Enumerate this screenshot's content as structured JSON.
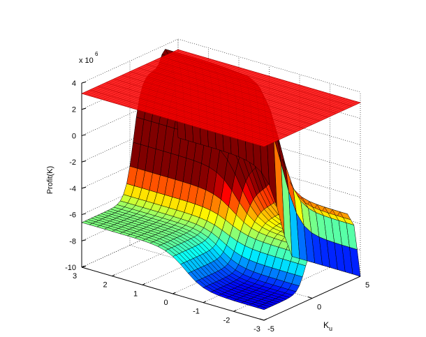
{
  "chart_data": {
    "type": "surface",
    "title": "",
    "zlabel": "Profit(K)",
    "xlabel": "",
    "ylabel": "K_u",
    "ylabel_main": "K",
    "ylabel_sub": "u",
    "z_exponent_label": "x 10",
    "z_exponent_power": "6",
    "xlim": [
      -3,
      3
    ],
    "ylim": [
      -5,
      5
    ],
    "zlim": [
      -10,
      4
    ],
    "x_ticks": [
      "3",
      "2",
      "1",
      "0",
      "-1",
      "-2",
      "-3"
    ],
    "x_tick_values": [
      3,
      2,
      1,
      0,
      -1,
      -2,
      -3
    ],
    "y_ticks": [
      "-5",
      "0",
      "5"
    ],
    "y_tick_values": [
      -5,
      0,
      5
    ],
    "z_ticks": [
      "4",
      "2",
      "0",
      "-2",
      "-4",
      "-6",
      "-8",
      "-10"
    ],
    "z_tick_values": [
      4,
      2,
      0,
      -2,
      -4,
      -6,
      -8,
      -10
    ],
    "grid": true,
    "colormap": "jet",
    "series": [
      {
        "kind": "surface",
        "description": "profit surface",
        "colormap": "jet"
      },
      {
        "kind": "plane",
        "z": 3.2,
        "color": "#ff0000"
      }
    ]
  }
}
